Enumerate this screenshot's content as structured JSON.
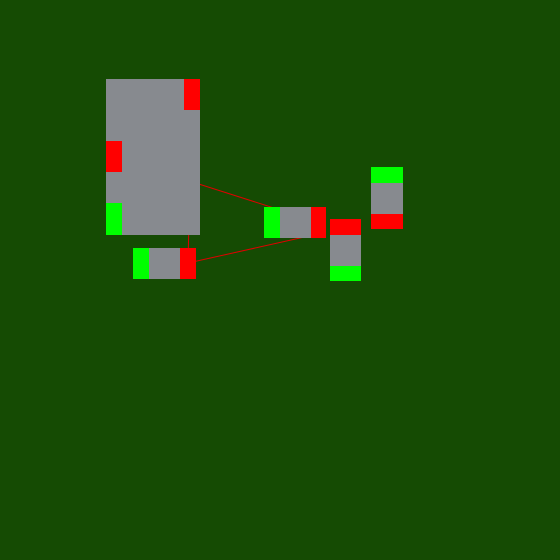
{
  "scene": {
    "background": "#154b03",
    "block_color": "#878a8f",
    "output_port_color": "#ff0000",
    "input_port_color": "#00ff00",
    "wire_color": "#e10000",
    "blocks": [
      {
        "name": "large-block",
        "ports": [
          {
            "name": "large-block-output-top",
            "kind": "output"
          },
          {
            "name": "large-block-output-middle",
            "kind": "output"
          },
          {
            "name": "large-block-input-bottom",
            "kind": "input"
          }
        ]
      },
      {
        "name": "small-block-bottom-left",
        "ports": [
          {
            "name": "small-block-bottom-left-input",
            "kind": "input"
          },
          {
            "name": "small-block-bottom-left-output",
            "kind": "output"
          }
        ]
      },
      {
        "name": "small-block-center",
        "ports": [
          {
            "name": "small-block-center-input",
            "kind": "input"
          },
          {
            "name": "small-block-center-output",
            "kind": "output"
          }
        ]
      },
      {
        "name": "vertical-block-lower",
        "ports": [
          {
            "name": "vertical-block-lower-output",
            "kind": "output"
          },
          {
            "name": "vertical-block-lower-input",
            "kind": "input"
          }
        ]
      },
      {
        "name": "vertical-block-upper",
        "ports": [
          {
            "name": "vertical-block-upper-input",
            "kind": "input"
          },
          {
            "name": "vertical-block-upper-output",
            "kind": "output"
          }
        ]
      }
    ],
    "connections": [
      {
        "name": "wire-large-top-to-small-bottom-left",
        "from": "large-block-output-top",
        "to": "small-block-bottom-left-output"
      },
      {
        "name": "wire-large-middle-to-small-center",
        "from": "large-block-output-middle",
        "to": "small-block-center-output"
      },
      {
        "name": "wire-small-bottom-left-to-small-center",
        "from": "small-block-bottom-left-output",
        "to": "small-block-center-output"
      }
    ]
  }
}
